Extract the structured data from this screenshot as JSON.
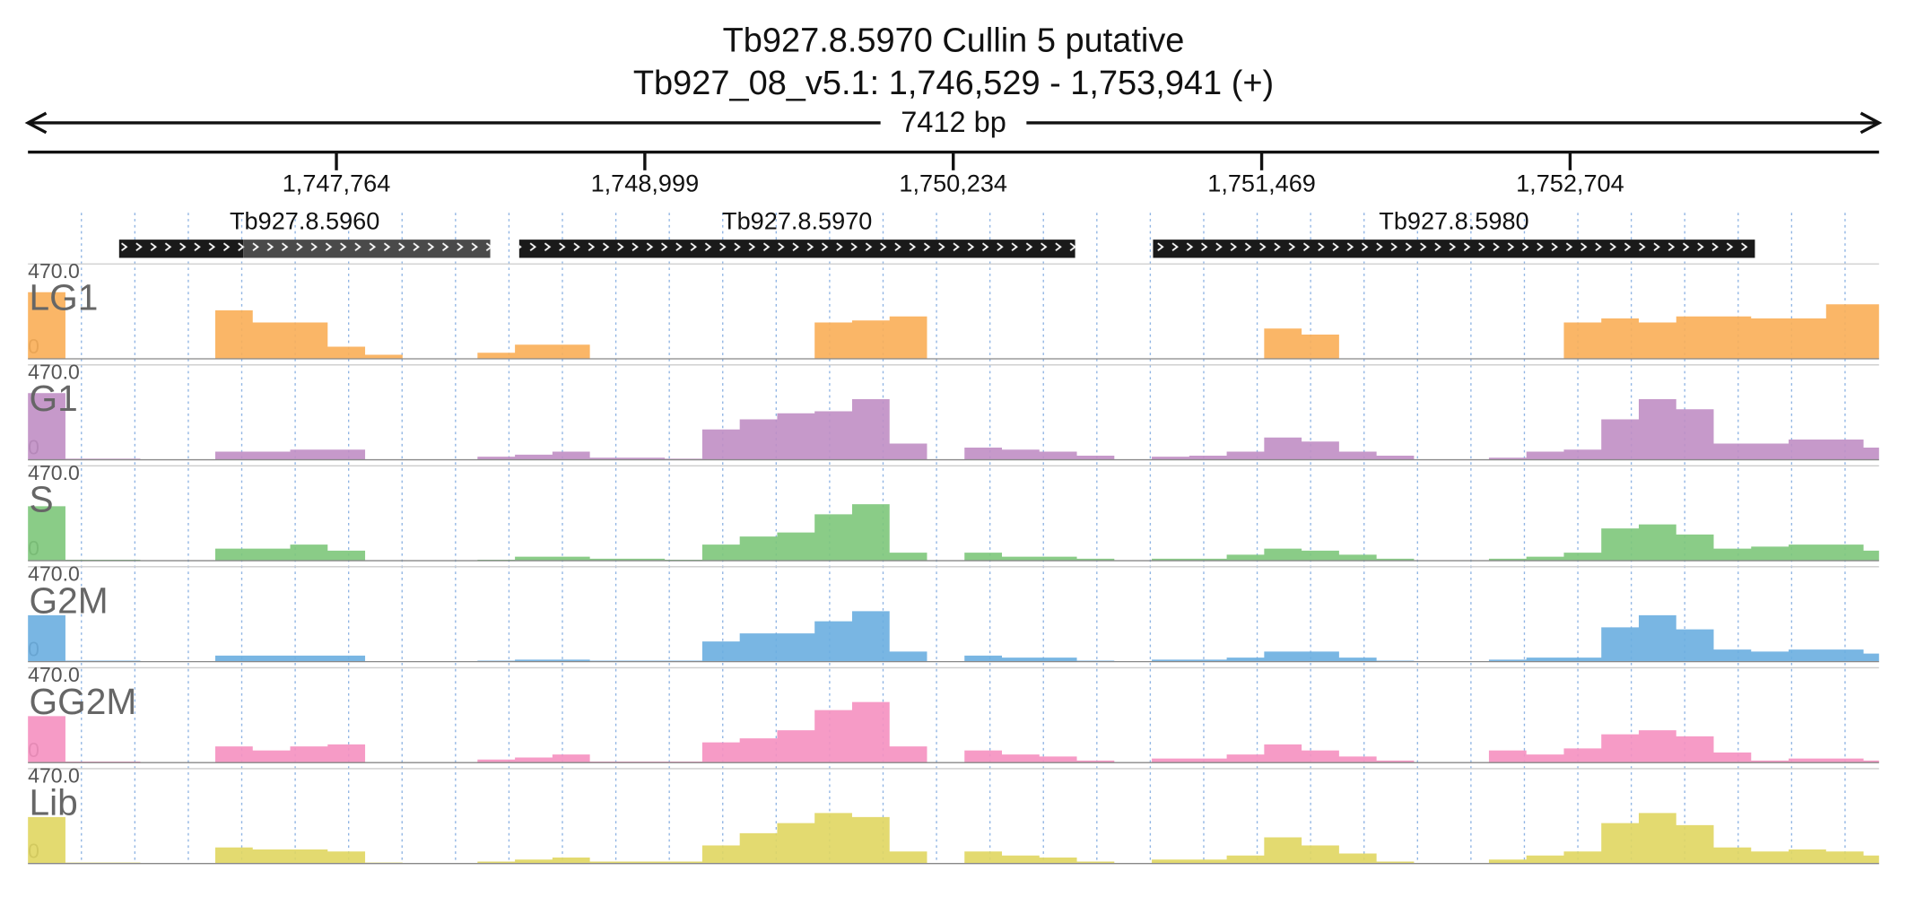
{
  "chart_data": {
    "type": "coverage",
    "title": "Tb927.8.5970  Cullin 5  putative",
    "subtitle": "Tb927_08_v5.1: 1,746,529 - 1,753,941 (+)",
    "span_label": "7412 bp",
    "xlim": [
      1746529,
      1753941
    ],
    "xticks": [
      {
        "value": 1747764,
        "label": "1,747,764"
      },
      {
        "value": 1748999,
        "label": "1,748,999"
      },
      {
        "value": 1750234,
        "label": "1,750,234"
      },
      {
        "value": 1751469,
        "label": "1,751,469"
      },
      {
        "value": 1752704,
        "label": "1,752,704"
      }
    ],
    "xgrid": [
      1746743,
      1746957,
      1747171,
      1747385,
      1747599,
      1747813,
      1748027,
      1748241,
      1748455,
      1748669,
      1748883,
      1749097,
      1749311,
      1749525,
      1749739,
      1749953,
      1750167,
      1750381,
      1750595,
      1750809,
      1751023,
      1751237,
      1751451,
      1751665,
      1751879,
      1752093,
      1752307,
      1752521,
      1752735,
      1752949,
      1753163,
      1753377,
      1753591,
      1753805
    ],
    "genes": [
      {
        "name": "Tb927.8.5960",
        "segments": [
          {
            "start": 1746894,
            "end": 1747391,
            "color": "#1a1a1a"
          },
          {
            "start": 1747391,
            "end": 1748380,
            "color": "#4a4a4a"
          }
        ]
      },
      {
        "name": "Tb927.8.5970",
        "segments": [
          {
            "start": 1748496,
            "end": 1750722,
            "color": "#1a1a1a"
          }
        ]
      },
      {
        "name": "Tb927.8.5980",
        "segments": [
          {
            "start": 1751034,
            "end": 1753444,
            "color": "#1a1a1a"
          }
        ]
      }
    ],
    "ylim": [
      0,
      470
    ],
    "yticks": [
      0,
      {
        "value": 470,
        "label": "470.0"
      }
    ],
    "x": [
      1746529,
      1746679,
      1746829,
      1746979,
      1747129,
      1747279,
      1747429,
      1747579,
      1747729,
      1747879,
      1748029,
      1748179,
      1748329,
      1748479,
      1748629,
      1748779,
      1748929,
      1749079,
      1749229,
      1749379,
      1749529,
      1749679,
      1749829,
      1749979,
      1750129,
      1750279,
      1750429,
      1750579,
      1750729,
      1750879,
      1751029,
      1751179,
      1751329,
      1751479,
      1751629,
      1751779,
      1751929,
      1752079,
      1752229,
      1752379,
      1752529,
      1752679,
      1752829,
      1752979,
      1753129,
      1753279,
      1753429,
      1753579,
      1753729,
      1753879
    ],
    "series": [
      {
        "name": "LG1",
        "color": "#f9ae57",
        "values": [
          330,
          0,
          0,
          0,
          0,
          240,
          180,
          180,
          60,
          20,
          0,
          0,
          30,
          70,
          70,
          0,
          0,
          0,
          0,
          0,
          0,
          180,
          190,
          210,
          0,
          0,
          0,
          0,
          0,
          0,
          0,
          0,
          0,
          150,
          120,
          0,
          0,
          0,
          0,
          0,
          0,
          180,
          200,
          180,
          210,
          210,
          200,
          200,
          270,
          270
        ]
      },
      {
        "name": "G1",
        "color": "#c08ec4",
        "values": [
          330,
          5,
          5,
          0,
          0,
          40,
          40,
          50,
          50,
          0,
          0,
          0,
          15,
          25,
          40,
          10,
          10,
          5,
          150,
          200,
          230,
          240,
          300,
          80,
          0,
          60,
          50,
          40,
          20,
          0,
          15,
          20,
          40,
          110,
          90,
          40,
          20,
          0,
          0,
          10,
          40,
          50,
          200,
          300,
          250,
          80,
          80,
          100,
          100,
          60
        ]
      },
      {
        "name": "S",
        "color": "#7dc77a",
        "values": [
          270,
          5,
          5,
          0,
          0,
          60,
          60,
          80,
          50,
          0,
          0,
          0,
          5,
          20,
          20,
          10,
          10,
          5,
          80,
          120,
          140,
          230,
          280,
          40,
          0,
          40,
          20,
          20,
          10,
          0,
          10,
          10,
          30,
          60,
          50,
          30,
          10,
          0,
          0,
          10,
          20,
          40,
          160,
          180,
          130,
          60,
          70,
          80,
          80,
          50
        ]
      },
      {
        "name": "G2M",
        "color": "#6aaee0",
        "values": [
          230,
          5,
          5,
          0,
          0,
          30,
          30,
          30,
          30,
          0,
          0,
          0,
          5,
          10,
          10,
          5,
          5,
          5,
          100,
          140,
          140,
          200,
          250,
          50,
          0,
          30,
          20,
          20,
          5,
          0,
          10,
          10,
          20,
          50,
          50,
          20,
          5,
          0,
          0,
          10,
          20,
          20,
          170,
          230,
          160,
          60,
          50,
          60,
          60,
          40
        ]
      },
      {
        "name": "GG2M",
        "color": "#f590c0",
        "values": [
          230,
          5,
          5,
          0,
          0,
          80,
          60,
          80,
          90,
          0,
          0,
          0,
          15,
          25,
          40,
          5,
          5,
          5,
          100,
          120,
          160,
          260,
          300,
          80,
          0,
          60,
          40,
          30,
          10,
          0,
          20,
          20,
          40,
          90,
          60,
          30,
          10,
          0,
          0,
          60,
          40,
          70,
          140,
          160,
          130,
          50,
          10,
          20,
          20,
          10
        ]
      },
      {
        "name": "Lib",
        "color": "#e0d660",
        "values": [
          230,
          5,
          5,
          0,
          0,
          80,
          70,
          70,
          60,
          5,
          0,
          0,
          10,
          20,
          30,
          10,
          10,
          10,
          90,
          150,
          200,
          250,
          230,
          60,
          0,
          60,
          40,
          30,
          10,
          0,
          20,
          20,
          40,
          130,
          90,
          50,
          10,
          0,
          0,
          20,
          40,
          60,
          200,
          250,
          190,
          80,
          60,
          70,
          60,
          40
        ]
      }
    ]
  }
}
